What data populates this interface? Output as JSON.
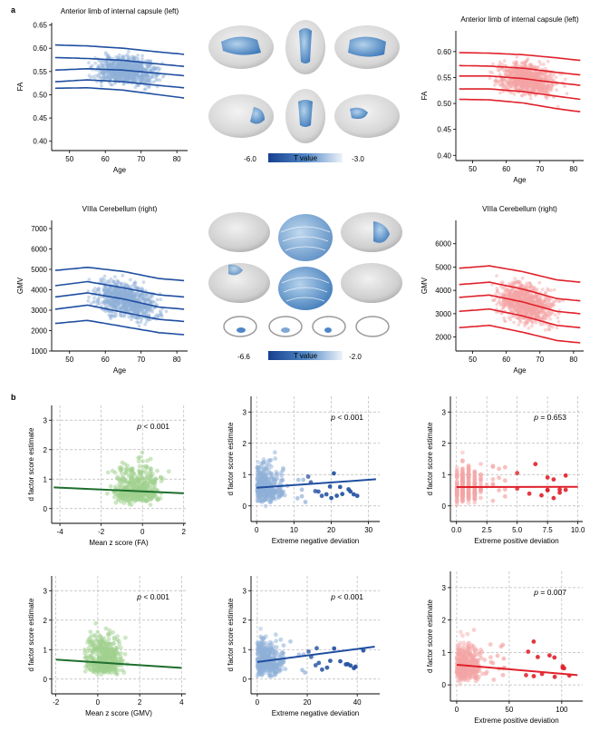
{
  "panel_labels": {
    "a": "a",
    "b": "b"
  },
  "brain_legends": [
    {
      "min_label": "-6.0",
      "max_label": "-3.0",
      "title": "T value",
      "color_dark": "#17408f",
      "color_light": "#eef4fa"
    },
    {
      "min_label": "-6.6",
      "max_label": "-2.0",
      "title": "T value",
      "color_dark": "#17408f",
      "color_light": "#eef4fa"
    }
  ],
  "colors": {
    "blue": "#1f4ea0",
    "blue_light": "#8fb0d8",
    "red": "#e0202a",
    "red_light": "#f4a5a5",
    "green": "#1e6e2e",
    "green_light": "#9fd08f"
  },
  "chart_data": [
    {
      "id": "fa-blue",
      "type": "scatter",
      "title": "Anterior limb of internal capsule (left)",
      "xlabel": "Age",
      "ylabel": "FA",
      "xlim": [
        45,
        83
      ],
      "ylim": [
        0.38,
        0.655
      ],
      "xticks": [
        50,
        60,
        70,
        80
      ],
      "yticks": [
        0.4,
        0.45,
        0.5,
        0.55,
        0.6,
        0.65
      ],
      "ytick_labels": [
        "0.40",
        "0.45",
        "0.50",
        "0.55",
        "0.60",
        "0.65"
      ],
      "color": "blue",
      "centile_curves": [
        {
          "x": [
            46,
            55,
            65,
            75,
            82
          ],
          "y": [
            0.607,
            0.605,
            0.6,
            0.592,
            0.587
          ]
        },
        {
          "x": [
            46,
            55,
            65,
            75,
            82
          ],
          "y": [
            0.58,
            0.578,
            0.574,
            0.566,
            0.561
          ]
        },
        {
          "x": [
            46,
            55,
            65,
            75,
            82
          ],
          "y": [
            0.553,
            0.556,
            0.553,
            0.546,
            0.541
          ]
        },
        {
          "x": [
            46,
            55,
            65,
            75,
            82
          ],
          "y": [
            0.528,
            0.532,
            0.528,
            0.52,
            0.515
          ]
        },
        {
          "x": [
            46,
            55,
            65,
            75,
            82
          ],
          "y": [
            0.514,
            0.515,
            0.51,
            0.5,
            0.493
          ]
        }
      ]
    },
    {
      "id": "fa-red",
      "type": "scatter",
      "title": "Anterior limb of internal capsule (left)",
      "xlabel": "Age",
      "ylabel": "FA",
      "xlim": [
        45,
        83
      ],
      "ylim": [
        0.39,
        0.64
      ],
      "xticks": [
        50,
        60,
        70,
        80
      ],
      "yticks": [
        0.4,
        0.45,
        0.5,
        0.55,
        0.6
      ],
      "ytick_labels": [
        "0.40",
        "0.45",
        "0.50",
        "0.55",
        "0.60"
      ],
      "color": "red",
      "centile_curves": [
        {
          "x": [
            46,
            55,
            65,
            75,
            82
          ],
          "y": [
            0.598,
            0.597,
            0.594,
            0.588,
            0.583
          ]
        },
        {
          "x": [
            46,
            55,
            65,
            75,
            82
          ],
          "y": [
            0.573,
            0.572,
            0.568,
            0.56,
            0.555
          ]
        },
        {
          "x": [
            46,
            55,
            65,
            75,
            82
          ],
          "y": [
            0.553,
            0.553,
            0.548,
            0.54,
            0.535
          ]
        },
        {
          "x": [
            46,
            55,
            65,
            75,
            82
          ],
          "y": [
            0.528,
            0.528,
            0.523,
            0.514,
            0.508
          ]
        },
        {
          "x": [
            46,
            55,
            65,
            75,
            82
          ],
          "y": [
            0.508,
            0.507,
            0.501,
            0.49,
            0.484
          ]
        }
      ]
    },
    {
      "id": "gmv-blue",
      "type": "scatter",
      "title": "VIIIa Cerebellum (right)",
      "xlabel": "Age",
      "ylabel": "GMV",
      "xlim": [
        45,
        83
      ],
      "ylim": [
        1000,
        7400
      ],
      "xticks": [
        50,
        60,
        70,
        80
      ],
      "yticks": [
        1000,
        2000,
        3000,
        4000,
        5000,
        6000,
        7000
      ],
      "ytick_labels": [
        "1000",
        "2000",
        "3000",
        "4000",
        "5000",
        "6000",
        "7000"
      ],
      "color": "blue",
      "centile_curves": [
        {
          "x": [
            46,
            55,
            65,
            75,
            82
          ],
          "y": [
            4950,
            5100,
            4900,
            4550,
            4450
          ]
        },
        {
          "x": [
            46,
            55,
            65,
            75,
            82
          ],
          "y": [
            4200,
            4400,
            4100,
            3750,
            3650
          ]
        },
        {
          "x": [
            46,
            55,
            65,
            75,
            82
          ],
          "y": [
            3650,
            3850,
            3550,
            3150,
            3050
          ]
        },
        {
          "x": [
            46,
            55,
            65,
            75,
            82
          ],
          "y": [
            3050,
            3250,
            2900,
            2550,
            2450
          ]
        },
        {
          "x": [
            46,
            55,
            65,
            75,
            82
          ],
          "y": [
            2350,
            2500,
            2200,
            1900,
            1800
          ]
        }
      ]
    },
    {
      "id": "gmv-red",
      "type": "scatter",
      "title": "VIIIa Cerebellum (right)",
      "xlabel": "Age",
      "ylabel": "GMV",
      "xlim": [
        45,
        83
      ],
      "ylim": [
        1400,
        7000
      ],
      "xticks": [
        50,
        60,
        70,
        80
      ],
      "yticks": [
        2000,
        3000,
        4000,
        5000,
        6000
      ],
      "ytick_labels": [
        "2000",
        "3000",
        "4000",
        "5000",
        "6000"
      ],
      "color": "red",
      "centile_curves": [
        {
          "x": [
            46,
            55,
            65,
            75,
            82
          ],
          "y": [
            4950,
            5050,
            4800,
            4450,
            4350
          ]
        },
        {
          "x": [
            46,
            55,
            65,
            75,
            82
          ],
          "y": [
            4250,
            4350,
            4050,
            3650,
            3550
          ]
        },
        {
          "x": [
            46,
            55,
            65,
            75,
            82
          ],
          "y": [
            3700,
            3800,
            3500,
            3100,
            3000
          ]
        },
        {
          "x": [
            46,
            55,
            65,
            75,
            82
          ],
          "y": [
            3100,
            3200,
            2900,
            2500,
            2400
          ]
        },
        {
          "x": [
            46,
            55,
            65,
            75,
            82
          ],
          "y": [
            2400,
            2500,
            2200,
            1850,
            1750
          ]
        }
      ]
    },
    {
      "id": "b1",
      "type": "scatter",
      "xlabel": "Mean z score (FA)",
      "ylabel": "d factor score estimate",
      "xlim": [
        -4.4,
        2.1
      ],
      "ylim": [
        -0.5,
        3.5
      ],
      "xticks": [
        -4,
        -2,
        0,
        2
      ],
      "xtick_labels": [
        "-4",
        "-2",
        "0",
        "2"
      ],
      "yticks": [
        0,
        1,
        2,
        3
      ],
      "ytick_labels": [
        "0",
        "1",
        "2",
        "3"
      ],
      "color": "green",
      "p_prefix": "p",
      "p_text": " < 0.001",
      "fit_line": {
        "x": [
          -4.3,
          2.0
        ],
        "y": [
          0.72,
          0.52
        ]
      }
    },
    {
      "id": "b2",
      "type": "scatter",
      "xlabel": "Extreme negative deviation",
      "ylabel": "d factor score estimate",
      "xlim": [
        -1.5,
        33
      ],
      "ylim": [
        -0.5,
        3.5
      ],
      "xticks": [
        0,
        10,
        20,
        30
      ],
      "xtick_labels": [
        "0",
        "10",
        "20",
        "30"
      ],
      "yticks": [
        0,
        1,
        2,
        3
      ],
      "ytick_labels": [
        "0",
        "1",
        "2",
        "3"
      ],
      "color": "blue",
      "p_prefix": "p",
      "p_text": " < 0.001",
      "fit_line": {
        "x": [
          0,
          32
        ],
        "y": [
          0.58,
          0.85
        ]
      }
    },
    {
      "id": "b3",
      "type": "scatter",
      "xlabel": "Extreme positive deviation",
      "ylabel": "d factor score estimate",
      "xlim": [
        -0.5,
        10.4
      ],
      "ylim": [
        -0.5,
        3.5
      ],
      "xticks": [
        0,
        2.5,
        5,
        7.5,
        10
      ],
      "xtick_labels": [
        "0.0",
        "2.5",
        "5.0",
        "7.5",
        "10.0"
      ],
      "yticks": [
        0,
        1,
        2,
        3
      ],
      "ytick_labels": [
        "0",
        "1",
        "2",
        "3"
      ],
      "color": "red",
      "p_prefix": "p",
      "p_text": " = 0.653",
      "fit_line": {
        "x": [
          0,
          10
        ],
        "y": [
          0.6,
          0.61
        ]
      }
    },
    {
      "id": "b4",
      "type": "scatter",
      "xlabel": "Mean z score (GMV)",
      "ylabel": "d factor score estimate",
      "xlim": [
        -2.2,
        4.2
      ],
      "ylim": [
        -0.5,
        3.5
      ],
      "xticks": [
        -2,
        0,
        2,
        4
      ],
      "xtick_labels": [
        "-2",
        "0",
        "2",
        "4"
      ],
      "yticks": [
        0,
        1,
        2,
        3
      ],
      "ytick_labels": [
        "0",
        "1",
        "2",
        "3"
      ],
      "color": "green",
      "p_prefix": "p",
      "p_text": " < 0.001",
      "fit_line": {
        "x": [
          -2.0,
          4.0
        ],
        "y": [
          0.66,
          0.38
        ]
      }
    },
    {
      "id": "b5",
      "type": "scatter",
      "xlabel": "Extreme negative deviation",
      "ylabel": "d factor score estimate",
      "xlim": [
        -2.5,
        49
      ],
      "ylim": [
        -0.5,
        3.5
      ],
      "xticks": [
        0,
        20,
        40
      ],
      "xtick_labels": [
        "0",
        "20",
        "40"
      ],
      "yticks": [
        0,
        1,
        2,
        3
      ],
      "ytick_labels": [
        "0",
        "1",
        "2",
        "3"
      ],
      "color": "blue",
      "p_prefix": "p",
      "p_text": " < 0.001",
      "fit_line": {
        "x": [
          0,
          47
        ],
        "y": [
          0.58,
          1.1
        ]
      }
    },
    {
      "id": "b6",
      "type": "scatter",
      "xlabel": "Extreme positive deviation",
      "ylabel": "d factor score estimate",
      "xlim": [
        -6,
        120
      ],
      "ylim": [
        -0.5,
        3.5
      ],
      "xticks": [
        0,
        50,
        100
      ],
      "xtick_labels": [
        "0",
        "50",
        "100"
      ],
      "yticks": [
        0,
        1,
        2,
        3
      ],
      "ytick_labels": [
        "0",
        "1",
        "2",
        "3"
      ],
      "color": "red",
      "p_prefix": "p",
      "p_text": " = 0.007",
      "fit_line": {
        "x": [
          0,
          115
        ],
        "y": [
          0.62,
          0.3
        ]
      }
    }
  ]
}
